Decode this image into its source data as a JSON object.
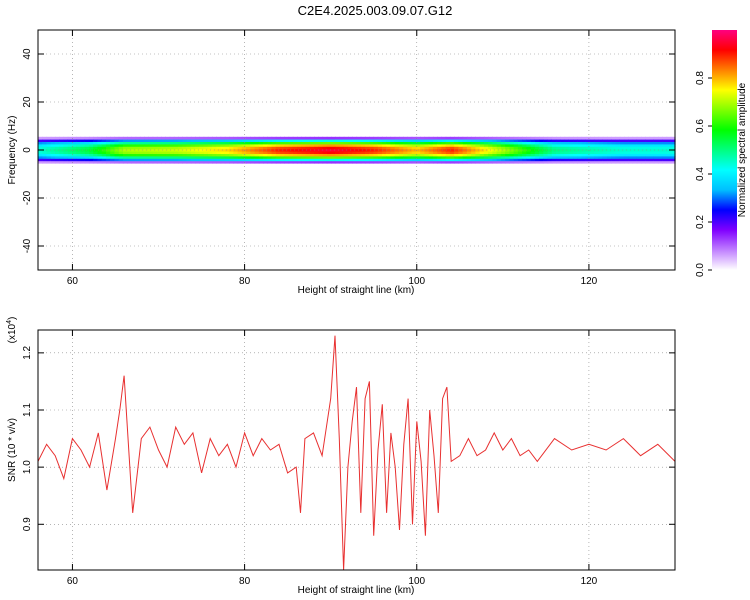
{
  "title": "C2E4.2025.003.09.07.G12",
  "chart_data": [
    {
      "type": "heatmap",
      "xlabel": "Height of straight line (km)",
      "ylabel": "Frequency (Hz)",
      "xlim": [
        56,
        130
      ],
      "ylim": [
        -50,
        50
      ],
      "xticks": [
        "60",
        "80",
        "100",
        "120"
      ],
      "yticks": [
        "40",
        "20",
        "0",
        "-20",
        "-40"
      ],
      "grid": "dotted",
      "colorbar": {
        "label": "Normalized spectral amplitude",
        "range": [
          0,
          1
        ],
        "ticks": [
          "0.0",
          "0.2",
          "0.4",
          "0.6",
          "0.8"
        ],
        "colors": [
          "#ffffff",
          "#c080ff",
          "#8000ff",
          "#0000ff",
          "#00bfff",
          "#00ffff",
          "#00ff80",
          "#00ff00",
          "#80ff00",
          "#ffff00",
          "#ff8000",
          "#ff0000",
          "#ff0080"
        ]
      },
      "band": {
        "center_hz": 0,
        "halfwidth_hz": 3,
        "amplitude_profile": [
          {
            "x": 56,
            "amp": 0.45
          },
          {
            "x": 62,
            "amp": 0.55
          },
          {
            "x": 66,
            "amp": 0.7
          },
          {
            "x": 72,
            "amp": 0.72
          },
          {
            "x": 78,
            "amp": 0.78
          },
          {
            "x": 84,
            "amp": 0.9
          },
          {
            "x": 90,
            "amp": 0.95
          },
          {
            "x": 95,
            "amp": 0.9
          },
          {
            "x": 100,
            "amp": 0.8
          },
          {
            "x": 104,
            "amp": 0.9
          },
          {
            "x": 110,
            "amp": 0.7
          },
          {
            "x": 116,
            "amp": 0.5
          },
          {
            "x": 124,
            "amp": 0.45
          },
          {
            "x": 130,
            "amp": 0.45
          }
        ]
      }
    },
    {
      "type": "line",
      "xlabel": "Height of straight line (km)",
      "ylabel": "SNR (10 * v/v)",
      "multiplier": "(x10^4)",
      "xlim": [
        56,
        130
      ],
      "ylim": [
        0.82,
        1.24
      ],
      "xticks": [
        "60",
        "80",
        "100",
        "120"
      ],
      "yticks": [
        "1.2",
        "1.1",
        "1.0",
        "0.9"
      ],
      "grid": "dotted",
      "series": [
        {
          "color": "#e83030",
          "x": [
            56,
            57,
            58,
            59,
            60,
            61,
            62,
            63,
            64,
            65,
            65.5,
            66,
            66.5,
            67,
            68,
            69,
            70,
            71,
            72,
            73,
            74,
            75,
            76,
            77,
            78,
            79,
            80,
            81,
            82,
            83,
            84,
            85,
            86,
            86.5,
            87,
            88,
            89,
            90,
            90.5,
            91,
            91.5,
            92,
            92.5,
            93,
            93.5,
            94,
            94.5,
            95,
            95.5,
            96,
            96.5,
            97,
            97.5,
            98,
            98.5,
            99,
            99.5,
            100,
            100.5,
            101,
            101.5,
            102,
            102.5,
            103,
            103.5,
            104,
            105,
            106,
            107,
            108,
            109,
            110,
            111,
            112,
            113,
            114,
            116,
            118,
            120,
            122,
            124,
            126,
            128,
            130
          ],
          "y": [
            1.01,
            1.04,
            1.02,
            0.98,
            1.05,
            1.03,
            1.0,
            1.06,
            0.96,
            1.05,
            1.1,
            1.16,
            1.04,
            0.92,
            1.05,
            1.07,
            1.03,
            1.0,
            1.07,
            1.04,
            1.06,
            0.99,
            1.05,
            1.02,
            1.04,
            1.0,
            1.06,
            1.02,
            1.05,
            1.03,
            1.04,
            0.99,
            1.0,
            0.92,
            1.05,
            1.06,
            1.02,
            1.12,
            1.23,
            1.05,
            0.82,
            1.0,
            1.08,
            1.14,
            0.92,
            1.12,
            1.15,
            0.88,
            1.03,
            1.11,
            0.92,
            1.06,
            1.0,
            0.89,
            1.04,
            1.12,
            0.9,
            1.08,
            1.01,
            0.88,
            1.1,
            1.02,
            0.92,
            1.12,
            1.14,
            1.01,
            1.02,
            1.05,
            1.02,
            1.03,
            1.06,
            1.03,
            1.05,
            1.02,
            1.03,
            1.01,
            1.05,
            1.03,
            1.04,
            1.03,
            1.05,
            1.02,
            1.04,
            1.01
          ]
        }
      ]
    }
  ]
}
